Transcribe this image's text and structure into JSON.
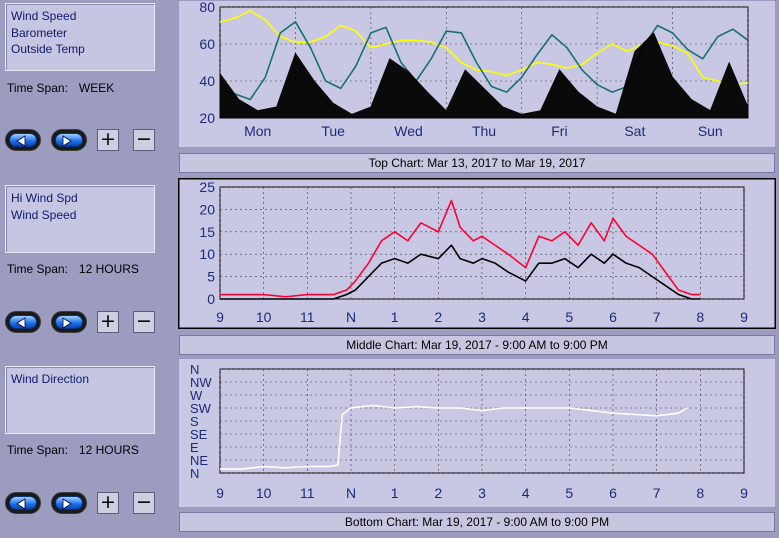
{
  "panels": [
    {
      "legend": [
        "Wind Speed",
        "Barometer",
        "Outside Temp"
      ],
      "timespan_label": "Time Span:",
      "timespan_value": "WEEK",
      "caption": {
        "name": "Top Chart:",
        "from": "Mar 13, 2017",
        "sep": "to",
        "to": "Mar 19, 2017"
      }
    },
    {
      "legend": [
        "Hi Wind Spd",
        "Wind Speed"
      ],
      "timespan_label": "Time Span:",
      "timespan_value": "12 HOURS",
      "caption": {
        "name": "Middle Chart:",
        "from": "Mar 19, 2017 - 9:00 AM",
        "sep": "to",
        "to": "9:00 PM"
      }
    },
    {
      "legend": [
        "Wind Direction"
      ],
      "timespan_label": "Time Span:",
      "timespan_value": "12 HOURS",
      "caption": {
        "name": "Bottom Chart:",
        "from": "Mar 19, 2017 - 9:00 AM",
        "sep": "to",
        "to": "9:00 PM"
      }
    }
  ],
  "controls": {
    "plus": "+",
    "minus": "−",
    "back_icon": "arrow-left-icon",
    "forward_icon": "arrow-right-icon"
  },
  "colors": {
    "wind_speed": "#000000",
    "barometer": "#1a7070",
    "outside_temp": "#ffff00",
    "hi_wind": "#ff0033",
    "direction": "#ffffff",
    "plot_bg": "#c8c8e4",
    "axis_text": "#1c2a78"
  },
  "chart_data": [
    {
      "type": "line",
      "x_categories": [
        "Mon",
        "Tue",
        "Wed",
        "Thu",
        "Fri",
        "Sat",
        "Sun"
      ],
      "ylim": [
        20,
        80
      ],
      "yticks": [
        20,
        40,
        60,
        80
      ],
      "grid": true,
      "series": [
        {
          "name": "Outside Temp",
          "x": [
            0,
            0.2,
            0.4,
            0.6,
            0.8,
            1.0,
            1.2,
            1.4,
            1.6,
            1.8,
            2.0,
            2.2,
            2.4,
            2.6,
            2.8,
            3.0,
            3.2,
            3.4,
            3.6,
            3.8,
            4.0,
            4.2,
            4.4,
            4.6,
            4.8,
            5.0,
            5.2,
            5.4,
            5.6,
            5.8,
            6.0,
            6.2,
            6.4,
            6.6,
            6.8,
            7.0
          ],
          "y": [
            72,
            74,
            78,
            73,
            64,
            61,
            61,
            64,
            70,
            67,
            58,
            60,
            62,
            62,
            61,
            58,
            50,
            46,
            45,
            43,
            46,
            50,
            49,
            47,
            49,
            55,
            60,
            56,
            60,
            61,
            59,
            55,
            42,
            40,
            38,
            39
          ]
        },
        {
          "name": "Barometer",
          "x": [
            0,
            0.2,
            0.4,
            0.6,
            0.8,
            1.0,
            1.2,
            1.4,
            1.6,
            1.8,
            2.0,
            2.2,
            2.4,
            2.6,
            2.8,
            3.0,
            3.2,
            3.4,
            3.6,
            3.8,
            4.0,
            4.2,
            4.4,
            4.6,
            4.8,
            5.0,
            5.2,
            5.4,
            5.6,
            5.8,
            6.0,
            6.2,
            6.4,
            6.6,
            6.8,
            7.0
          ],
          "y": [
            35,
            33,
            30,
            42,
            66,
            72,
            58,
            40,
            36,
            48,
            66,
            69,
            50,
            40,
            52,
            67,
            66,
            50,
            37,
            34,
            42,
            54,
            65,
            58,
            46,
            38,
            34,
            37,
            58,
            70,
            66,
            57,
            52,
            64,
            68,
            62
          ]
        },
        {
          "name": "Wind Speed",
          "style": "filled",
          "x": [
            0,
            0.25,
            0.5,
            0.75,
            1.0,
            1.25,
            1.5,
            1.75,
            2.0,
            2.25,
            2.5,
            2.75,
            3.0,
            3.25,
            3.5,
            3.75,
            4.0,
            4.25,
            4.5,
            4.75,
            5.0,
            5.25,
            5.5,
            5.75,
            6.0,
            6.25,
            6.5,
            6.75,
            7.0
          ],
          "y": [
            44,
            30,
            24,
            26,
            55,
            40,
            28,
            22,
            26,
            52,
            45,
            34,
            24,
            46,
            36,
            26,
            22,
            24,
            46,
            34,
            26,
            22,
            56,
            66,
            42,
            30,
            24,
            50,
            26
          ]
        }
      ]
    },
    {
      "type": "line",
      "x_categories": [
        "9",
        "10",
        "11",
        "N",
        "1",
        "2",
        "3",
        "4",
        "5",
        "6",
        "7",
        "8",
        "9"
      ],
      "ylim": [
        0,
        25
      ],
      "yticks": [
        0,
        5,
        10,
        15,
        20,
        25
      ],
      "grid": true,
      "series": [
        {
          "name": "Hi Wind Spd",
          "x": [
            0,
            0.5,
            1.0,
            1.5,
            2.0,
            2.4,
            2.6,
            2.9,
            3.1,
            3.4,
            3.7,
            4.0,
            4.3,
            4.6,
            5.0,
            5.3,
            5.5,
            5.8,
            6.0,
            6.3,
            6.6,
            7.0,
            7.3,
            7.6,
            7.9,
            8.2,
            8.5,
            8.8,
            9.0,
            9.3,
            9.6,
            9.9,
            10.2,
            10.5,
            10.8,
            11.0
          ],
          "y": [
            1,
            1,
            1,
            0.5,
            1,
            1,
            1,
            2,
            4,
            8,
            13,
            15,
            13,
            17,
            15,
            22,
            16,
            13,
            14,
            12,
            10,
            7,
            14,
            13,
            15,
            12,
            17,
            13,
            18,
            14,
            12,
            10,
            6,
            2,
            1,
            1
          ]
        },
        {
          "name": "Wind Speed",
          "x": [
            0,
            0.5,
            1.0,
            1.5,
            2.0,
            2.4,
            2.6,
            2.9,
            3.1,
            3.4,
            3.7,
            4.0,
            4.3,
            4.6,
            5.0,
            5.3,
            5.5,
            5.8,
            6.0,
            6.3,
            6.6,
            7.0,
            7.3,
            7.6,
            7.9,
            8.2,
            8.5,
            8.8,
            9.0,
            9.3,
            9.6,
            9.9,
            10.2,
            10.5,
            10.8,
            11.0
          ],
          "y": [
            0,
            0,
            0,
            0,
            0,
            0,
            0,
            1,
            2,
            5,
            8,
            9,
            8,
            10,
            9,
            12,
            9,
            8,
            9,
            8,
            6,
            4,
            8,
            8,
            9,
            7,
            10,
            8,
            10,
            8,
            7,
            5,
            3,
            1,
            0,
            0
          ]
        }
      ]
    },
    {
      "type": "line",
      "x_categories": [
        "9",
        "10",
        "11",
        "N",
        "1",
        "2",
        "3",
        "4",
        "5",
        "6",
        "7",
        "8",
        "9"
      ],
      "y_categories": [
        "N",
        "NE",
        "E",
        "SE",
        "S",
        "SW",
        "W",
        "NW",
        "N"
      ],
      "grid": true,
      "series": [
        {
          "name": "Wind Direction",
          "x": [
            0,
            0.5,
            1.0,
            1.5,
            2.0,
            2.5,
            2.7,
            2.8,
            3.0,
            3.5,
            4.0,
            4.5,
            5.0,
            5.5,
            6.0,
            6.5,
            7.0,
            7.5,
            8.0,
            8.5,
            9.0,
            9.5,
            10.0,
            10.5,
            10.7
          ],
          "y": [
            0.3,
            0.3,
            0.5,
            0.4,
            0.5,
            0.5,
            0.6,
            4.5,
            5.0,
            5.2,
            5.0,
            5.1,
            5.0,
            5.0,
            4.8,
            5.0,
            5.0,
            5.0,
            5.0,
            4.8,
            4.6,
            4.5,
            4.4,
            4.6,
            5.0
          ]
        }
      ]
    }
  ]
}
